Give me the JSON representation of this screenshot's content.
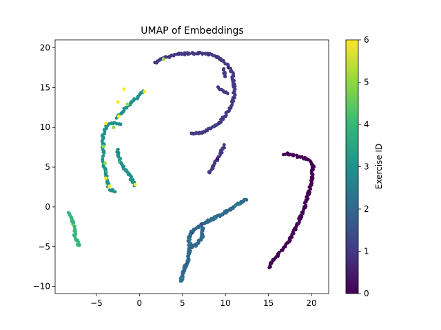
{
  "chart_data": {
    "type": "scatter",
    "title": "UMAP of Embeddings",
    "xlabel": "",
    "ylabel": "",
    "xlim": [
      -9.8,
      22
    ],
    "ylim": [
      -10.9,
      21.0
    ],
    "xticks": [
      -5,
      0,
      5,
      10,
      15,
      20
    ],
    "yticks": [
      -10,
      -5,
      0,
      5,
      10,
      15,
      20
    ],
    "grid": false,
    "colorbar": {
      "label": "Exercise ID",
      "min": 0,
      "max": 6,
      "ticks": [
        0,
        1,
        2,
        3,
        4,
        5,
        6
      ],
      "colormap": "viridis"
    },
    "clusters": [
      {
        "exercise_id": 1,
        "path": [
          [
            1.8,
            18.1
          ],
          [
            3,
            18.8
          ],
          [
            4.5,
            19.2
          ],
          [
            6,
            19.3
          ],
          [
            7.5,
            19.3
          ],
          [
            8.5,
            19.0
          ],
          [
            9.5,
            18.6
          ],
          [
            10.3,
            17.8
          ],
          [
            10.8,
            16.8
          ],
          [
            11.0,
            15.5
          ],
          [
            11.0,
            14.0
          ],
          [
            10.6,
            12.5
          ],
          [
            10.0,
            11.5
          ],
          [
            9.2,
            10.5
          ],
          [
            8.2,
            9.8
          ],
          [
            7.0,
            9.3
          ],
          [
            5.8,
            9.2
          ]
        ],
        "count": 170
      },
      {
        "exercise_id": 1,
        "path": [
          [
            9.0,
            15.0
          ],
          [
            9.7,
            14.7
          ],
          [
            10.2,
            14.2
          ]
        ],
        "count": 12
      },
      {
        "exercise_id": 1,
        "path": [
          [
            9.8,
            17.5
          ],
          [
            9.9,
            16.8
          ],
          [
            10.1,
            16.3
          ]
        ],
        "count": 8
      },
      {
        "exercise_id": 1,
        "path": [
          [
            8.1,
            4.2
          ],
          [
            8.7,
            5.3
          ],
          [
            9.2,
            6.3
          ],
          [
            9.7,
            7.3
          ],
          [
            10.0,
            7.8
          ]
        ],
        "count": 30
      },
      {
        "exercise_id": 0,
        "path": [
          [
            16.8,
            6.7
          ],
          [
            18.0,
            6.5
          ],
          [
            19.5,
            6.0
          ],
          [
            20.2,
            5.3
          ],
          [
            20.1,
            4.0
          ],
          [
            19.8,
            2.2
          ],
          [
            19.2,
            0.0
          ],
          [
            18.5,
            -2.0
          ],
          [
            17.5,
            -4.0
          ],
          [
            16.5,
            -5.5
          ],
          [
            15.5,
            -6.8
          ],
          [
            15.0,
            -7.6
          ]
        ],
        "count": 150
      },
      {
        "exercise_id": 2,
        "path": [
          [
            12.5,
            1.0
          ],
          [
            11.0,
            0.0
          ],
          [
            9.5,
            -1.0
          ],
          [
            8.0,
            -1.8
          ],
          [
            6.8,
            -2.5
          ],
          [
            6.0,
            -3.2
          ],
          [
            5.7,
            -4.2
          ],
          [
            5.9,
            -5.0
          ],
          [
            6.6,
            -4.8
          ],
          [
            7.3,
            -3.8
          ],
          [
            7.4,
            -2.6
          ]
        ],
        "count": 150
      },
      {
        "exercise_id": 2,
        "path": [
          [
            5.9,
            -4.6
          ],
          [
            5.8,
            -5.8
          ],
          [
            5.6,
            -6.8
          ],
          [
            5.2,
            -7.8
          ],
          [
            4.8,
            -9.4
          ]
        ],
        "count": 60
      },
      {
        "exercise_id": 3,
        "path": [
          [
            -3.8,
            10.2
          ],
          [
            -4.3,
            9.0
          ],
          [
            -4.2,
            7.5
          ],
          [
            -4.2,
            5.8
          ],
          [
            -3.9,
            4.0
          ],
          [
            -3.6,
            2.5
          ]
        ],
        "count": 55
      },
      {
        "exercise_id": 3,
        "path": [
          [
            -2.6,
            7.2
          ],
          [
            -2.2,
            5.5
          ],
          [
            -1.3,
            4.2
          ],
          [
            -0.5,
            2.7
          ]
        ],
        "count": 40
      },
      {
        "exercise_id": 3,
        "path": [
          [
            -2.6,
            11.2
          ],
          [
            -2.0,
            12.0
          ],
          [
            -1.2,
            12.8
          ],
          [
            -0.5,
            13.6
          ],
          [
            0.6,
            14.6
          ]
        ],
        "count": 35
      },
      {
        "exercise_id": 3,
        "path": [
          [
            -3.8,
            10.3
          ],
          [
            -3.0,
            10.5
          ],
          [
            -2.0,
            10.3
          ]
        ],
        "count": 15
      },
      {
        "exercise_id": 3,
        "path": [
          [
            -3.4,
            2.2
          ],
          [
            -2.8,
            2.0
          ]
        ],
        "count": 6
      },
      {
        "exercise_id": 4,
        "path": [
          [
            -8.2,
            -0.8
          ],
          [
            -7.9,
            -1.5
          ],
          [
            -7.6,
            -2.5
          ],
          [
            -7.5,
            -3.6
          ],
          [
            -7.2,
            -4.5
          ],
          [
            -7.0,
            -5.0
          ]
        ],
        "count": 40
      }
    ],
    "highlights": [
      {
        "exercise_id": 6,
        "x": -1.8,
        "y": 14.8
      },
      {
        "exercise_id": 6,
        "x": -2.5,
        "y": 13.2
      },
      {
        "exercise_id": 6,
        "x": 0.6,
        "y": 14.5
      },
      {
        "exercise_id": 6,
        "x": -3.5,
        "y": 2.6
      },
      {
        "exercise_id": 6,
        "x": -3.9,
        "y": 3.6
      },
      {
        "exercise_id": 6,
        "x": -0.5,
        "y": 2.8
      },
      {
        "exercise_id": 6,
        "x": -3.9,
        "y": 10.5
      },
      {
        "exercise_id": 6,
        "x": -2.4,
        "y": 11.4
      },
      {
        "exercise_id": 5,
        "x": -4.2,
        "y": 7.6
      },
      {
        "exercise_id": 5,
        "x": -3.0,
        "y": 10.0
      },
      {
        "exercise_id": 5,
        "x": 2.8,
        "y": 18.6
      },
      {
        "exercise_id": 5,
        "x": -1.4,
        "y": 12.9
      },
      {
        "exercise_id": 5,
        "x": -4.0,
        "y": 5.5
      }
    ]
  }
}
